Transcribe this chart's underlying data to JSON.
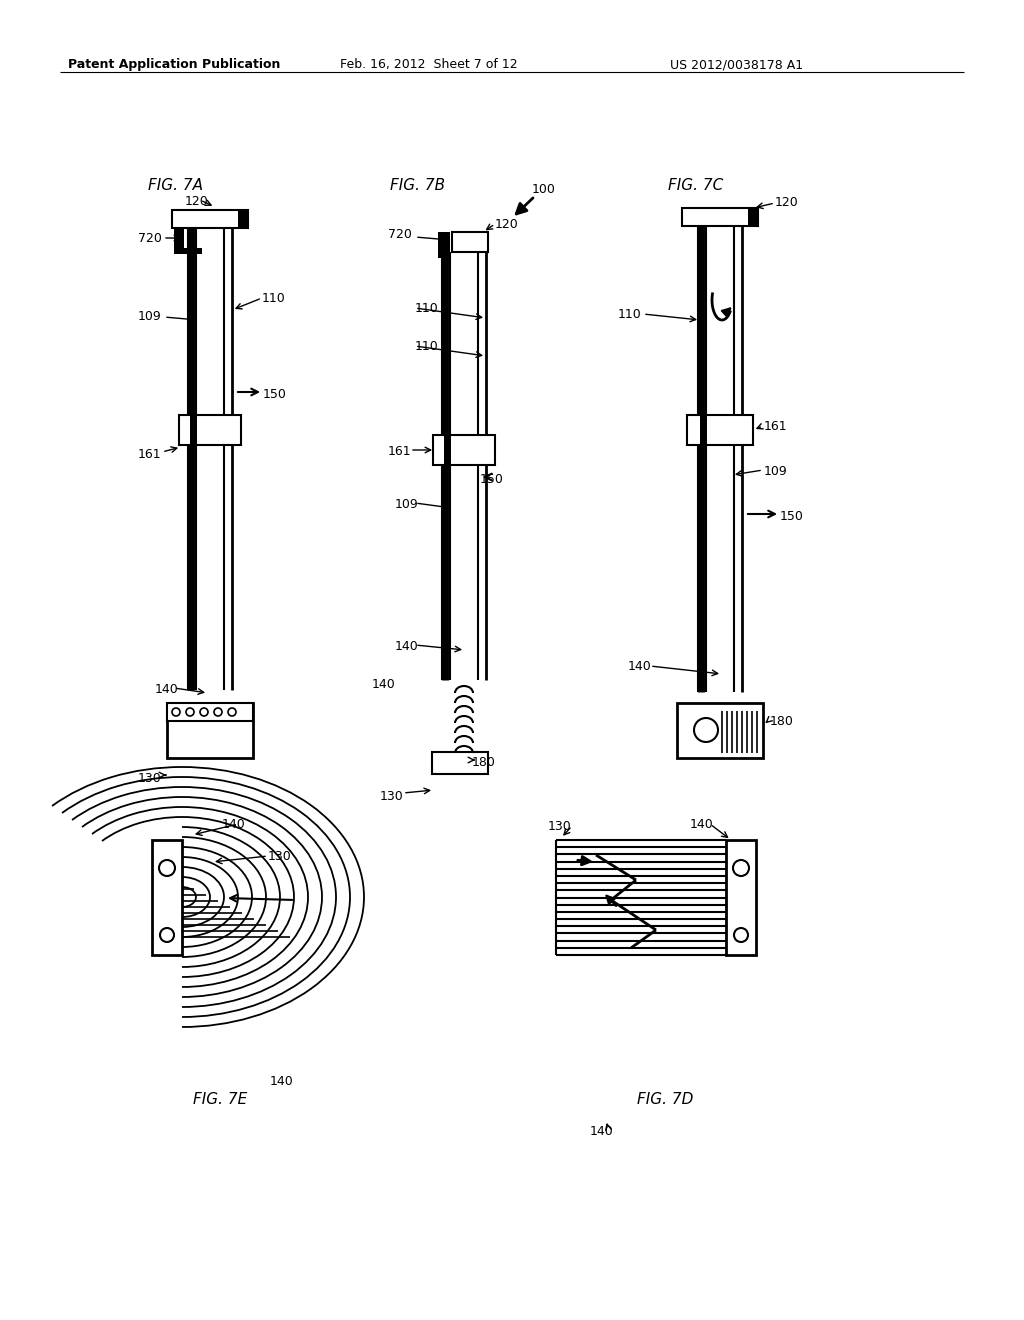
{
  "bg_color": "#ffffff",
  "header_left": "Patent Application Publication",
  "header_mid": "Feb. 16, 2012  Sheet 7 of 12",
  "header_right": "US 2012/0038178 A1",
  "line_color": "#000000"
}
